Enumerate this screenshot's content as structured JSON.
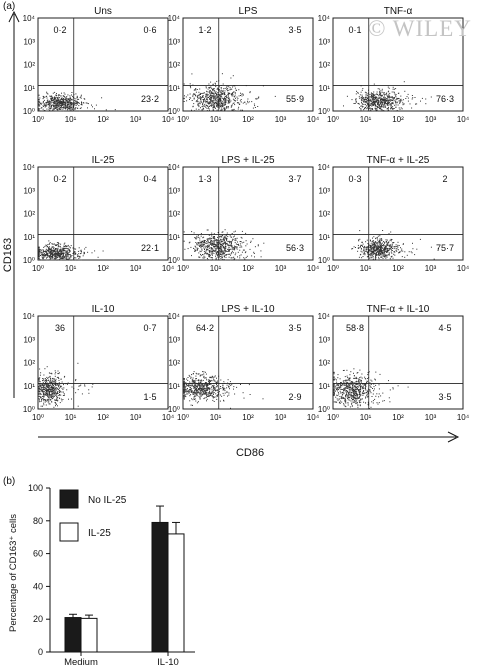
{
  "chart_data": [
    {
      "type": "scatter",
      "panel_label": "(a)",
      "xlabel": "CD86",
      "ylabel": "CD163",
      "x_scale": "log",
      "y_scale": "log",
      "xlim": [
        1,
        10000
      ],
      "ylim": [
        1,
        10000
      ],
      "tick_labels": [
        "10⁰",
        "10¹",
        "10²",
        "10³",
        "10⁴"
      ],
      "panels": [
        {
          "title": "Uns",
          "quadrants": {
            "ul": "0·2",
            "ur": "0·6",
            "lr": "23·2"
          }
        },
        {
          "title": "LPS",
          "quadrants": {
            "ul": "1·2",
            "ur": "3·5",
            "lr": "55·9"
          }
        },
        {
          "title": "TNF-α",
          "quadrants": {
            "ul": "0·1",
            "ur": "",
            "lr": "76·3"
          }
        },
        {
          "title": "IL-25",
          "quadrants": {
            "ul": "0·2",
            "ur": "0·4",
            "lr": "22·1"
          }
        },
        {
          "title": "LPS + IL-25",
          "quadrants": {
            "ul": "1·3",
            "ur": "3·7",
            "lr": "56·3"
          }
        },
        {
          "title": "TNF-α + IL-25",
          "quadrants": {
            "ul": "0·3",
            "ur": "2",
            "lr": "75·7"
          }
        },
        {
          "title": "IL-10",
          "quadrants": {
            "ul": "36",
            "ur": "0·7",
            "lr": "1·5"
          }
        },
        {
          "title": "LPS + IL-10",
          "quadrants": {
            "ul": "64·2",
            "ur": "3·5",
            "lr": "2·9"
          }
        },
        {
          "title": "TNF-α + IL-10",
          "quadrants": {
            "ul": "58·8",
            "ur": "4·5",
            "lr": "3·5"
          }
        }
      ]
    },
    {
      "type": "bar",
      "panel_label": "(b)",
      "categories": [
        "Medium",
        "IL-10"
      ],
      "series": [
        {
          "name": "No IL-25",
          "values": [
            21,
            79
          ],
          "errors": [
            2,
            10
          ],
          "color": "#1a1a1a"
        },
        {
          "name": "IL-25",
          "values": [
            20.5,
            72
          ],
          "errors": [
            2,
            7
          ],
          "color": "#ffffff"
        }
      ],
      "ylabel": "Percentage of CD163⁺ cells",
      "ylim": [
        0,
        100
      ],
      "yticks": [
        "0",
        "20",
        "40",
        "60",
        "80",
        "100"
      ],
      "legend_position": "top-left"
    }
  ],
  "watermark": "© WILEY"
}
